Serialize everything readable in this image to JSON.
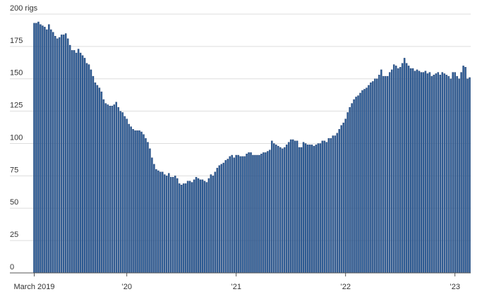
{
  "chart_data": {
    "type": "bar",
    "categories": [
      "March 2019",
      null,
      null,
      null,
      null,
      null,
      null,
      null,
      null,
      null,
      null,
      null,
      null,
      null,
      null,
      null,
      null,
      null,
      null,
      null,
      null,
      null,
      null,
      null,
      null,
      null,
      null,
      null,
      null,
      null,
      null,
      null,
      null,
      null,
      null,
      null,
      null,
      null,
      null,
      null,
      null,
      null,
      null,
      null,
      "’20",
      null,
      null,
      null,
      null,
      null,
      null,
      null,
      null,
      null,
      null,
      null,
      null,
      null,
      null,
      null,
      null,
      null,
      null,
      null,
      null,
      null,
      null,
      null,
      null,
      null,
      null,
      null,
      null,
      null,
      null,
      null,
      null,
      null,
      null,
      null,
      null,
      null,
      null,
      null,
      null,
      null,
      null,
      null,
      null,
      null,
      null,
      null,
      null,
      null,
      null,
      null,
      "’21",
      null,
      null,
      null,
      null,
      null,
      null,
      null,
      null,
      null,
      null,
      null,
      null,
      null,
      null,
      null,
      null,
      null,
      null,
      null,
      null,
      null,
      null,
      null,
      null,
      null,
      null,
      null,
      null,
      null,
      null,
      null,
      null,
      null,
      null,
      null,
      null,
      null,
      null,
      null,
      null,
      null,
      null,
      null,
      null,
      null,
      null,
      null,
      null,
      null,
      null,
      null,
      "’22",
      null,
      null,
      null,
      null,
      null,
      null,
      null,
      null,
      null,
      null,
      null,
      null,
      null,
      null,
      null,
      null,
      null,
      null,
      null,
      null,
      null,
      null,
      null,
      null,
      null,
      null,
      null,
      null,
      null,
      null,
      null,
      null,
      null,
      null,
      null,
      null,
      null,
      null,
      null,
      null,
      null,
      null,
      null,
      null,
      null,
      null,
      null,
      null,
      null,
      null,
      null,
      "’23",
      null,
      null,
      null,
      null,
      null,
      null,
      null
    ],
    "values": [
      193,
      193,
      194,
      192,
      191,
      190,
      188,
      192,
      188,
      186,
      183,
      181,
      182,
      184,
      184,
      185,
      181,
      176,
      172,
      172,
      170,
      173,
      170,
      168,
      166,
      162,
      161,
      157,
      152,
      147,
      145,
      143,
      140,
      134,
      131,
      130,
      129,
      129,
      130,
      132,
      128,
      125,
      124,
      121,
      119,
      115,
      113,
      111,
      110,
      110,
      110,
      109,
      107,
      104,
      101,
      96,
      89,
      84,
      80,
      79,
      78,
      78,
      76,
      75,
      77,
      74,
      74,
      75,
      73,
      69,
      68,
      69,
      69,
      71,
      71,
      70,
      72,
      74,
      73,
      72,
      72,
      71,
      70,
      73,
      76,
      75,
      78,
      81,
      83,
      84,
      85,
      87,
      88,
      90,
      91,
      89,
      91,
      91,
      90,
      90,
      90,
      92,
      93,
      93,
      91,
      91,
      91,
      91,
      92,
      93,
      93,
      94,
      95,
      102,
      100,
      99,
      98,
      97,
      96,
      97,
      99,
      101,
      103,
      103,
      102,
      102,
      97,
      97,
      101,
      100,
      99,
      99,
      99,
      98,
      99,
      100,
      100,
      102,
      102,
      101,
      104,
      104,
      106,
      106,
      108,
      111,
      114,
      116,
      119,
      124,
      128,
      131,
      134,
      136,
      137,
      139,
      141,
      142,
      143,
      145,
      147,
      148,
      150,
      150,
      153,
      157,
      152,
      152,
      152,
      155,
      157,
      161,
      160,
      158,
      159,
      162,
      166,
      162,
      160,
      158,
      158,
      156,
      157,
      156,
      155,
      155,
      156,
      154,
      155,
      152,
      153,
      154,
      155,
      153,
      155,
      154,
      153,
      152,
      150,
      155,
      155,
      152,
      150,
      155,
      160,
      159,
      150,
      151
    ],
    "color": "#2f5f98",
    "ylim": [
      0,
      200
    ],
    "yticks": [
      0,
      25,
      50,
      75,
      100,
      125,
      150,
      175,
      {
        "value": 200,
        "label": "200 rigs"
      }
    ],
    "grid": true
  }
}
